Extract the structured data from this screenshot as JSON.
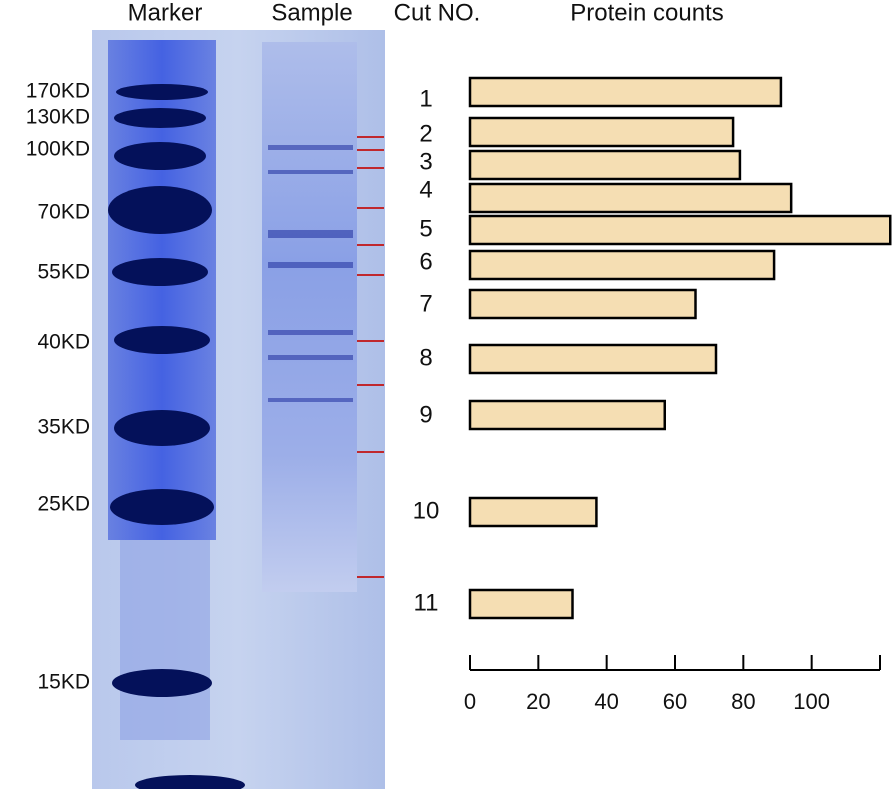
{
  "gel": {
    "lanes": [
      "Marker",
      "Sample"
    ],
    "markers": [
      "170KD",
      "130KD",
      "100KD",
      "70KD",
      "55KD",
      "40KD",
      "35KD",
      "25KD",
      "15KD"
    ]
  },
  "chart_data": {
    "type": "bar",
    "orientation": "horizontal",
    "category_label": "Cut NO.",
    "title": "Protein counts",
    "categories": [
      "1",
      "2",
      "3",
      "4",
      "5",
      "6",
      "7",
      "8",
      "9",
      "10",
      "11"
    ],
    "values": [
      91,
      77,
      79,
      94,
      123,
      89,
      66,
      72,
      57,
      37,
      30
    ],
    "color": "#f5deb3",
    "xlim": [
      0,
      120
    ],
    "xticks": [
      0,
      20,
      40,
      60,
      80,
      100
    ]
  }
}
